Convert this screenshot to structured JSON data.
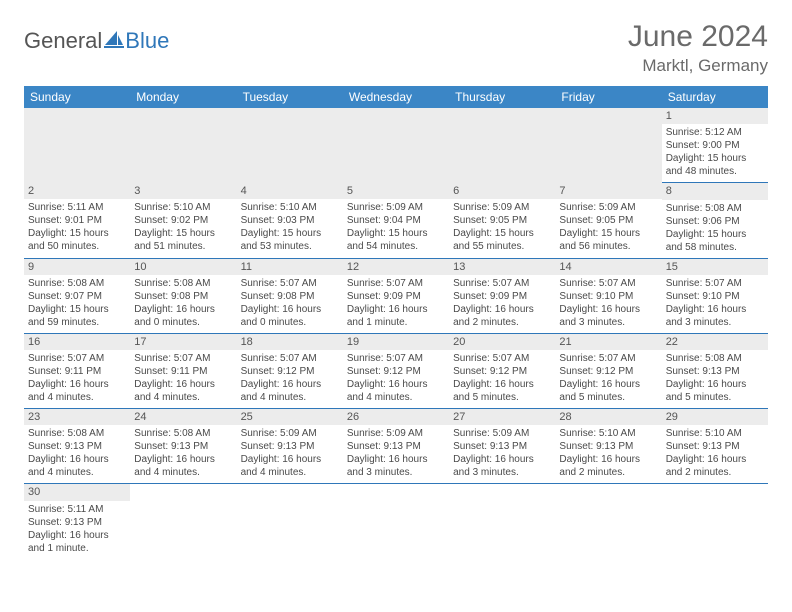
{
  "logo": {
    "part1": "General",
    "part2": "Blue"
  },
  "title": "June 2024",
  "location": "Marktl, Germany",
  "day_headers": [
    "Sunday",
    "Monday",
    "Tuesday",
    "Wednesday",
    "Thursday",
    "Friday",
    "Saturday"
  ],
  "header_bg": "#3b86c6",
  "header_fg": "#ffffff",
  "daynum_bg": "#ececec",
  "cell_border": "#2f77b9",
  "text_color": "#4a4a4a",
  "weeks": [
    [
      null,
      null,
      null,
      null,
      null,
      null,
      {
        "n": "1",
        "sr": "5:12 AM",
        "ss": "9:00 PM",
        "dl": "15 hours and 48 minutes."
      }
    ],
    [
      {
        "n": "2",
        "sr": "5:11 AM",
        "ss": "9:01 PM",
        "dl": "15 hours and 50 minutes."
      },
      {
        "n": "3",
        "sr": "5:10 AM",
        "ss": "9:02 PM",
        "dl": "15 hours and 51 minutes."
      },
      {
        "n": "4",
        "sr": "5:10 AM",
        "ss": "9:03 PM",
        "dl": "15 hours and 53 minutes."
      },
      {
        "n": "5",
        "sr": "5:09 AM",
        "ss": "9:04 PM",
        "dl": "15 hours and 54 minutes."
      },
      {
        "n": "6",
        "sr": "5:09 AM",
        "ss": "9:05 PM",
        "dl": "15 hours and 55 minutes."
      },
      {
        "n": "7",
        "sr": "5:09 AM",
        "ss": "9:05 PM",
        "dl": "15 hours and 56 minutes."
      },
      {
        "n": "8",
        "sr": "5:08 AM",
        "ss": "9:06 PM",
        "dl": "15 hours and 58 minutes."
      }
    ],
    [
      {
        "n": "9",
        "sr": "5:08 AM",
        "ss": "9:07 PM",
        "dl": "15 hours and 59 minutes."
      },
      {
        "n": "10",
        "sr": "5:08 AM",
        "ss": "9:08 PM",
        "dl": "16 hours and 0 minutes."
      },
      {
        "n": "11",
        "sr": "5:07 AM",
        "ss": "9:08 PM",
        "dl": "16 hours and 0 minutes."
      },
      {
        "n": "12",
        "sr": "5:07 AM",
        "ss": "9:09 PM",
        "dl": "16 hours and 1 minute."
      },
      {
        "n": "13",
        "sr": "5:07 AM",
        "ss": "9:09 PM",
        "dl": "16 hours and 2 minutes."
      },
      {
        "n": "14",
        "sr": "5:07 AM",
        "ss": "9:10 PM",
        "dl": "16 hours and 3 minutes."
      },
      {
        "n": "15",
        "sr": "5:07 AM",
        "ss": "9:10 PM",
        "dl": "16 hours and 3 minutes."
      }
    ],
    [
      {
        "n": "16",
        "sr": "5:07 AM",
        "ss": "9:11 PM",
        "dl": "16 hours and 4 minutes."
      },
      {
        "n": "17",
        "sr": "5:07 AM",
        "ss": "9:11 PM",
        "dl": "16 hours and 4 minutes."
      },
      {
        "n": "18",
        "sr": "5:07 AM",
        "ss": "9:12 PM",
        "dl": "16 hours and 4 minutes."
      },
      {
        "n": "19",
        "sr": "5:07 AM",
        "ss": "9:12 PM",
        "dl": "16 hours and 4 minutes."
      },
      {
        "n": "20",
        "sr": "5:07 AM",
        "ss": "9:12 PM",
        "dl": "16 hours and 5 minutes."
      },
      {
        "n": "21",
        "sr": "5:07 AM",
        "ss": "9:12 PM",
        "dl": "16 hours and 5 minutes."
      },
      {
        "n": "22",
        "sr": "5:08 AM",
        "ss": "9:13 PM",
        "dl": "16 hours and 5 minutes."
      }
    ],
    [
      {
        "n": "23",
        "sr": "5:08 AM",
        "ss": "9:13 PM",
        "dl": "16 hours and 4 minutes."
      },
      {
        "n": "24",
        "sr": "5:08 AM",
        "ss": "9:13 PM",
        "dl": "16 hours and 4 minutes."
      },
      {
        "n": "25",
        "sr": "5:09 AM",
        "ss": "9:13 PM",
        "dl": "16 hours and 4 minutes."
      },
      {
        "n": "26",
        "sr": "5:09 AM",
        "ss": "9:13 PM",
        "dl": "16 hours and 3 minutes."
      },
      {
        "n": "27",
        "sr": "5:09 AM",
        "ss": "9:13 PM",
        "dl": "16 hours and 3 minutes."
      },
      {
        "n": "28",
        "sr": "5:10 AM",
        "ss": "9:13 PM",
        "dl": "16 hours and 2 minutes."
      },
      {
        "n": "29",
        "sr": "5:10 AM",
        "ss": "9:13 PM",
        "dl": "16 hours and 2 minutes."
      }
    ],
    [
      {
        "n": "30",
        "sr": "5:11 AM",
        "ss": "9:13 PM",
        "dl": "16 hours and 1 minute."
      },
      null,
      null,
      null,
      null,
      null,
      null
    ]
  ],
  "labels": {
    "sunrise": "Sunrise: ",
    "sunset": "Sunset: ",
    "daylight": "Daylight: "
  }
}
